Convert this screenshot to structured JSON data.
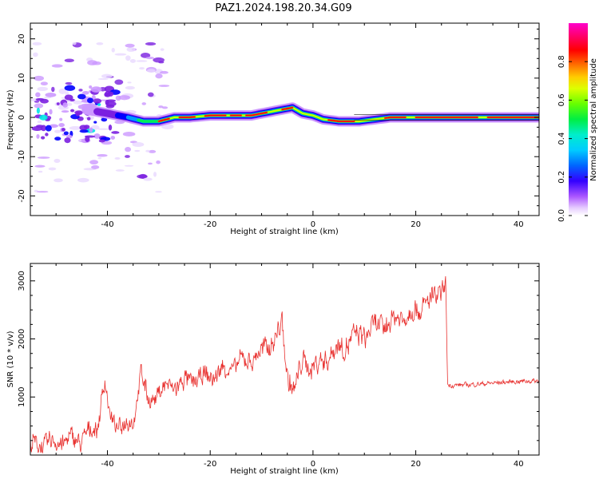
{
  "figure": {
    "title": "PAZ1.2024.198.20.34.G09"
  },
  "colors": {
    "snr_line": "#e8302e",
    "colormap": [
      "#ffffff",
      "#e9d8ff",
      "#cc99ff",
      "#7b1fe0",
      "#0000ff",
      "#0099ff",
      "#00e5e5",
      "#00ee55",
      "#33ff00",
      "#ccff00",
      "#ffcc00",
      "#ff6600",
      "#ff0000",
      "#ff0077",
      "#ff00cc"
    ]
  },
  "chart_data": [
    {
      "type": "heatmap",
      "xlabel": "Height of straight line (km)",
      "ylabel": "Frequency (Hz)",
      "xlim": [
        -55,
        44
      ],
      "ylim": [
        -25,
        24
      ],
      "xticks": [
        -40,
        -20,
        0,
        20,
        40
      ],
      "yticks": [
        20,
        10,
        0,
        -10,
        -20
      ],
      "ridge": {
        "x": [
          -55,
          -48,
          -44,
          -40,
          -36,
          -33,
          -30,
          -27,
          -24,
          -20,
          -16,
          -12,
          -10,
          -8,
          -6,
          -4,
          -2,
          0,
          2,
          5,
          9,
          12,
          15,
          20,
          30,
          44
        ],
        "y": [
          4,
          4,
          2,
          1,
          0,
          -1,
          -1,
          0,
          0,
          0.5,
          0.5,
          0.5,
          1,
          1.5,
          2,
          2.5,
          1,
          0.5,
          -0.5,
          -1,
          -1,
          -0.5,
          0,
          0,
          0,
          0
        ]
      },
      "colorbar": {
        "label": "Normalized spectral amplitude",
        "range": [
          0,
          1
        ],
        "ticks": [
          "0.0",
          "0.2",
          "0.4",
          "0.6",
          "0.8"
        ]
      }
    },
    {
      "type": "line",
      "xlabel": "Height of straight line (km)",
      "ylabel": "SNR (10 * v/v)",
      "xlim": [
        -55,
        44
      ],
      "ylim": [
        0,
        3300
      ],
      "xticks": [
        -40,
        -20,
        0,
        20,
        40
      ],
      "yticks": [
        1000,
        2000,
        3000
      ],
      "trend": {
        "x": [
          -55,
          -50,
          -45,
          -42,
          -40.5,
          -39.5,
          -38,
          -35,
          -33.5,
          -32,
          -30,
          -25,
          -20,
          -15,
          -10,
          -7,
          -6,
          -5,
          -3.5,
          -2,
          0,
          5,
          10,
          15,
          20,
          24,
          25.8,
          26.2,
          30,
          35,
          40,
          44
        ],
        "y": [
          150,
          220,
          280,
          480,
          1300,
          600,
          520,
          560,
          1450,
          900,
          1120,
          1250,
          1350,
          1550,
          1750,
          2050,
          2250,
          1350,
          1100,
          1650,
          1500,
          1850,
          2100,
          2300,
          2500,
          2700,
          2950,
          1200,
          1210,
          1240,
          1270,
          1280
        ]
      }
    }
  ]
}
